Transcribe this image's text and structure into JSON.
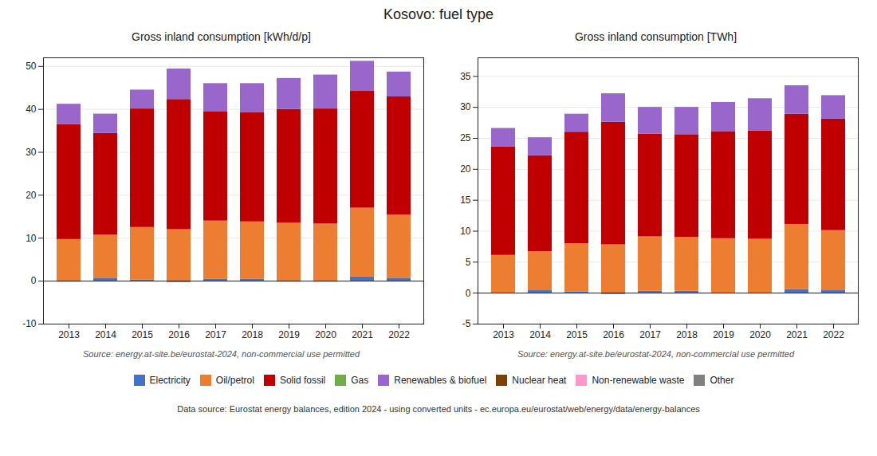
{
  "title": "Kosovo: fuel type",
  "subtitle": "Data source: Eurostat energy balances, edition 2024 - using converted units - ec.europa.eu/eurostat/web/energy/data/energy-balances",
  "legend": "bottom",
  "chart_data": [
    {
      "type": "bar",
      "stacked": true,
      "grid": true,
      "title": "Gross inland consumption [kWh/d/p]",
      "annotations": [
        "Source: energy.at-site.be/eurostat-2024, non-commercial use permitted"
      ],
      "categories": [
        "2013",
        "2014",
        "2015",
        "2016",
        "2017",
        "2018",
        "2019",
        "2020",
        "2021",
        "2022"
      ],
      "ylim": [
        -10,
        52
      ],
      "yticks": [
        -10,
        0,
        10,
        20,
        30,
        40,
        50
      ],
      "series": [
        {
          "name": "Electricity",
          "color": "#4472c4",
          "values": [
            -0.2,
            0.7,
            0.3,
            -0.3,
            0.5,
            0.5,
            -0.2,
            -0.2,
            1.0,
            0.7
          ]
        },
        {
          "name": "Oil/petrol",
          "color": "#ed7d31",
          "values": [
            9.7,
            10.0,
            12.2,
            12.0,
            13.5,
            13.3,
            13.5,
            13.3,
            16.0,
            14.7
          ]
        },
        {
          "name": "Solid fossil",
          "color": "#c00000",
          "values": [
            26.8,
            23.7,
            27.6,
            30.3,
            25.5,
            25.5,
            26.5,
            26.8,
            27.2,
            27.5
          ]
        },
        {
          "name": "Gas",
          "color": "#70ad47",
          "values": [
            0.0,
            0.0,
            0.0,
            0.0,
            0.0,
            0.0,
            0.0,
            0.0,
            0.0,
            0.0
          ]
        },
        {
          "name": "Renewables & biofuel",
          "color": "#9966cc",
          "values": [
            4.7,
            4.5,
            4.4,
            7.1,
            6.5,
            6.7,
            7.2,
            7.9,
            7.0,
            5.8
          ]
        },
        {
          "name": "Nuclear heat",
          "color": "#7b3f00",
          "values": [
            0.0,
            0.0,
            0.0,
            0.0,
            0.0,
            0.0,
            0.0,
            0.0,
            0.0,
            0.0
          ]
        },
        {
          "name": "Non-renewable waste",
          "color": "#ff99cc",
          "values": [
            0.0,
            0.0,
            0.0,
            0.0,
            0.0,
            0.0,
            0.0,
            0.0,
            0.0,
            0.0
          ]
        },
        {
          "name": "Other",
          "color": "#808080",
          "values": [
            0.0,
            0.0,
            0.0,
            0.0,
            0.0,
            0.0,
            0.0,
            0.0,
            0.0,
            0.0
          ]
        }
      ]
    },
    {
      "type": "bar",
      "stacked": true,
      "grid": true,
      "title": "Gross inland consumption [TWh]",
      "annotations": [
        "Source: energy.at-site.be/eurostat-2024, non-commercial use permitted"
      ],
      "categories": [
        "2013",
        "2014",
        "2015",
        "2016",
        "2017",
        "2018",
        "2019",
        "2020",
        "2021",
        "2022"
      ],
      "ylim": [
        -5,
        38
      ],
      "yticks": [
        -5,
        0,
        5,
        10,
        15,
        20,
        25,
        30,
        35
      ],
      "series": [
        {
          "name": "Electricity",
          "color": "#4472c4",
          "values": [
            -0.1,
            0.4,
            0.2,
            -0.2,
            0.3,
            0.3,
            -0.1,
            -0.1,
            0.6,
            0.4
          ]
        },
        {
          "name": "Oil/petrol",
          "color": "#ed7d31",
          "values": [
            6.1,
            6.3,
            7.8,
            7.8,
            8.8,
            8.7,
            8.8,
            8.7,
            10.5,
            9.7
          ]
        },
        {
          "name": "Solid fossil",
          "color": "#c00000",
          "values": [
            17.5,
            15.5,
            18.0,
            19.8,
            16.6,
            16.6,
            17.3,
            17.5,
            17.8,
            18.0
          ]
        },
        {
          "name": "Gas",
          "color": "#70ad47",
          "values": [
            0.0,
            0.0,
            0.0,
            0.0,
            0.0,
            0.0,
            0.0,
            0.0,
            0.0,
            0.0
          ]
        },
        {
          "name": "Renewables & biofuel",
          "color": "#9966cc",
          "values": [
            3.0,
            2.9,
            2.9,
            4.6,
            4.3,
            4.4,
            4.7,
            5.2,
            4.6,
            3.8
          ]
        },
        {
          "name": "Nuclear heat",
          "color": "#7b3f00",
          "values": [
            0.0,
            0.0,
            0.0,
            0.0,
            0.0,
            0.0,
            0.0,
            0.0,
            0.0,
            0.0
          ]
        },
        {
          "name": "Non-renewable waste",
          "color": "#ff99cc",
          "values": [
            0.0,
            0.0,
            0.0,
            0.0,
            0.0,
            0.0,
            0.0,
            0.0,
            0.0,
            0.0
          ]
        },
        {
          "name": "Other",
          "color": "#808080",
          "values": [
            0.0,
            0.0,
            0.0,
            0.0,
            0.0,
            0.0,
            0.0,
            0.0,
            0.0,
            0.0
          ]
        }
      ]
    }
  ]
}
